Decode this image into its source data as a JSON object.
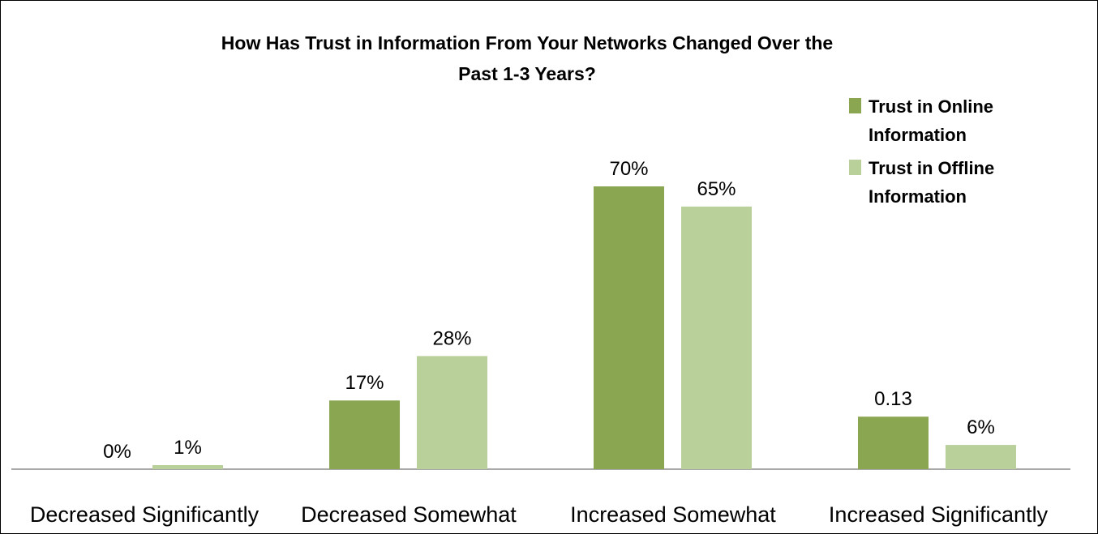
{
  "chart_data": {
    "type": "bar",
    "title": "How Has Trust in Information From Your Networks Changed Over the\nPast 1-3 Years?",
    "categories": [
      "Decreased Significantly",
      "Decreased Somewhat",
      "Increased Somewhat",
      "Increased Significantly"
    ],
    "series": [
      {
        "name": "Trust in Online Information",
        "legend_lines": [
          "Trust in Online",
          "Information"
        ],
        "color": "#8AA650",
        "values": [
          0,
          0.17,
          0.7,
          0.13
        ],
        "labels": [
          "0%",
          "17%",
          "70%",
          "0.13"
        ]
      },
      {
        "name": "Trust in Offline Information",
        "legend_lines": [
          "Trust in Offline",
          "Information"
        ],
        "color": "#B9D09A",
        "values": [
          0.01,
          0.28,
          0.65,
          0.06
        ],
        "labels": [
          "1%",
          "28%",
          "65%",
          "6%"
        ]
      }
    ],
    "ylim": [
      0,
      0.7
    ],
    "grid": false,
    "legend_position": "top-right",
    "xlabel": "",
    "ylabel": ""
  }
}
